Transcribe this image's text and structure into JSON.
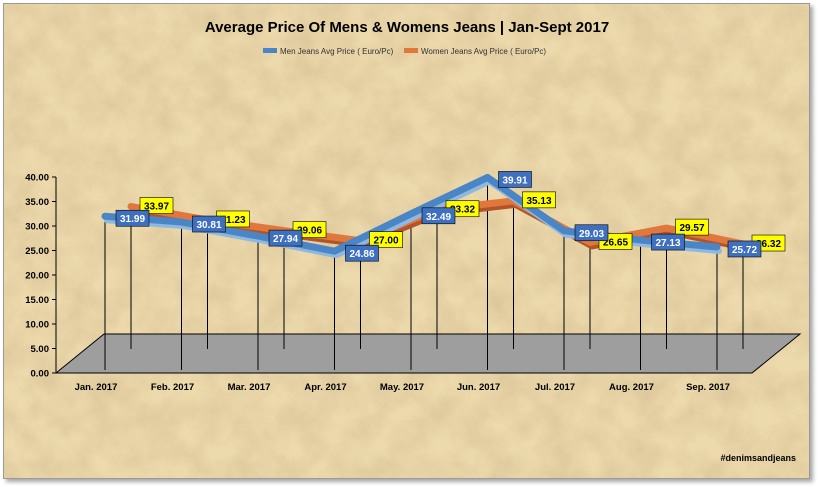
{
  "chart_data": {
    "type": "line",
    "title": "Average Price Of Mens & Womens Jeans | Jan-Sept 2017",
    "categories": [
      "Jan. 2017",
      "Feb. 2017",
      "Mar. 2017",
      "Apr. 2017",
      "May. 2017",
      "Jun. 2017",
      "Jul. 2017",
      "Aug. 2017",
      "Sep. 2017"
    ],
    "series": [
      {
        "name": "Men Jeans Avg Price ( Euro/Pc)",
        "values": [
          31.99,
          30.81,
          27.94,
          24.86,
          32.49,
          39.91,
          29.03,
          27.13,
          25.72
        ]
      },
      {
        "name": "Women Jeans Avg Price ( Euro/Pc)",
        "values": [
          33.97,
          31.23,
          29.06,
          27.0,
          33.32,
          35.13,
          26.65,
          29.57,
          26.32
        ]
      }
    ],
    "y_ticks": [
      "0.00",
      "5.00",
      "10.00",
      "15.00",
      "20.00",
      "25.00",
      "30.00",
      "35.00",
      "40.00"
    ],
    "ylim": [
      0,
      40
    ],
    "legend_position": "top",
    "grid": false,
    "colors": {
      "men": "#4a86c6",
      "women": "#e0773c",
      "men_label_bg": "#3f6fbf",
      "women_label_bg": "#ffff00",
      "floor": "#9e9e9e",
      "background": "#ecd9ac"
    }
  },
  "watermark": "#denimsandjeans"
}
